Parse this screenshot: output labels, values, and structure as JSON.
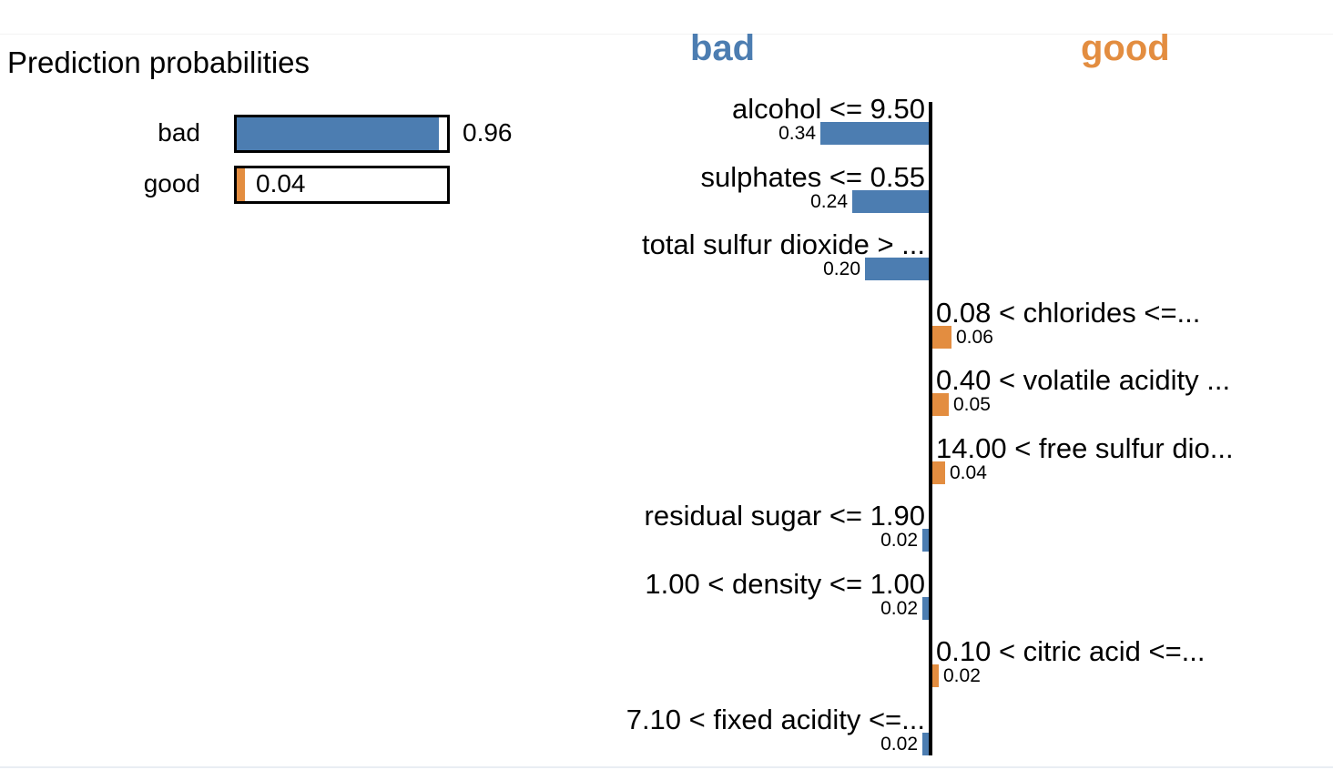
{
  "accent_colors": {
    "bad": "#4C7DB1",
    "good": "#E38D40"
  },
  "chart_data": [
    {
      "type": "bar",
      "title": "Prediction probabilities",
      "categories": [
        "bad",
        "good"
      ],
      "values": [
        0.96,
        0.04
      ],
      "value_labels": [
        "0.96",
        "0.04"
      ],
      "colors": [
        "#4C7DB1",
        "#E38D40"
      ],
      "xlim": [
        0,
        1
      ],
      "orientation": "horizontal",
      "grid": false,
      "legend": "none"
    },
    {
      "type": "bar",
      "orientation": "horizontal-diverging",
      "left_header": "bad",
      "right_header": "good",
      "colors": {
        "bad": "#4C7DB1",
        "good": "#E38D40"
      },
      "xlim": [
        -0.4,
        0.4
      ],
      "grid": false,
      "features": [
        {
          "label": "alcohol <= 9.50",
          "value": 0.34,
          "value_label": "0.34",
          "side": "bad"
        },
        {
          "label": "sulphates <= 0.55",
          "value": 0.24,
          "value_label": "0.24",
          "side": "bad"
        },
        {
          "label": "total sulfur dioxide > ...",
          "value": 0.2,
          "value_label": "0.20",
          "side": "bad"
        },
        {
          "label": "0.08 < chlorides <=...",
          "value": 0.06,
          "value_label": "0.06",
          "side": "good"
        },
        {
          "label": "0.40 < volatile acidity ...",
          "value": 0.05,
          "value_label": "0.05",
          "side": "good"
        },
        {
          "label": "14.00 < free sulfur dio...",
          "value": 0.04,
          "value_label": "0.04",
          "side": "good"
        },
        {
          "label": "residual sugar <= 1.90",
          "value": 0.02,
          "value_label": "0.02",
          "side": "bad"
        },
        {
          "label": "1.00 < density <= 1.00",
          "value": 0.02,
          "value_label": "0.02",
          "side": "bad"
        },
        {
          "label": "0.10 < citric acid <=...",
          "value": 0.02,
          "value_label": "0.02",
          "side": "good"
        },
        {
          "label": "7.10 < fixed acidity <=...",
          "value": 0.02,
          "value_label": "0.02",
          "side": "bad"
        }
      ]
    }
  ]
}
